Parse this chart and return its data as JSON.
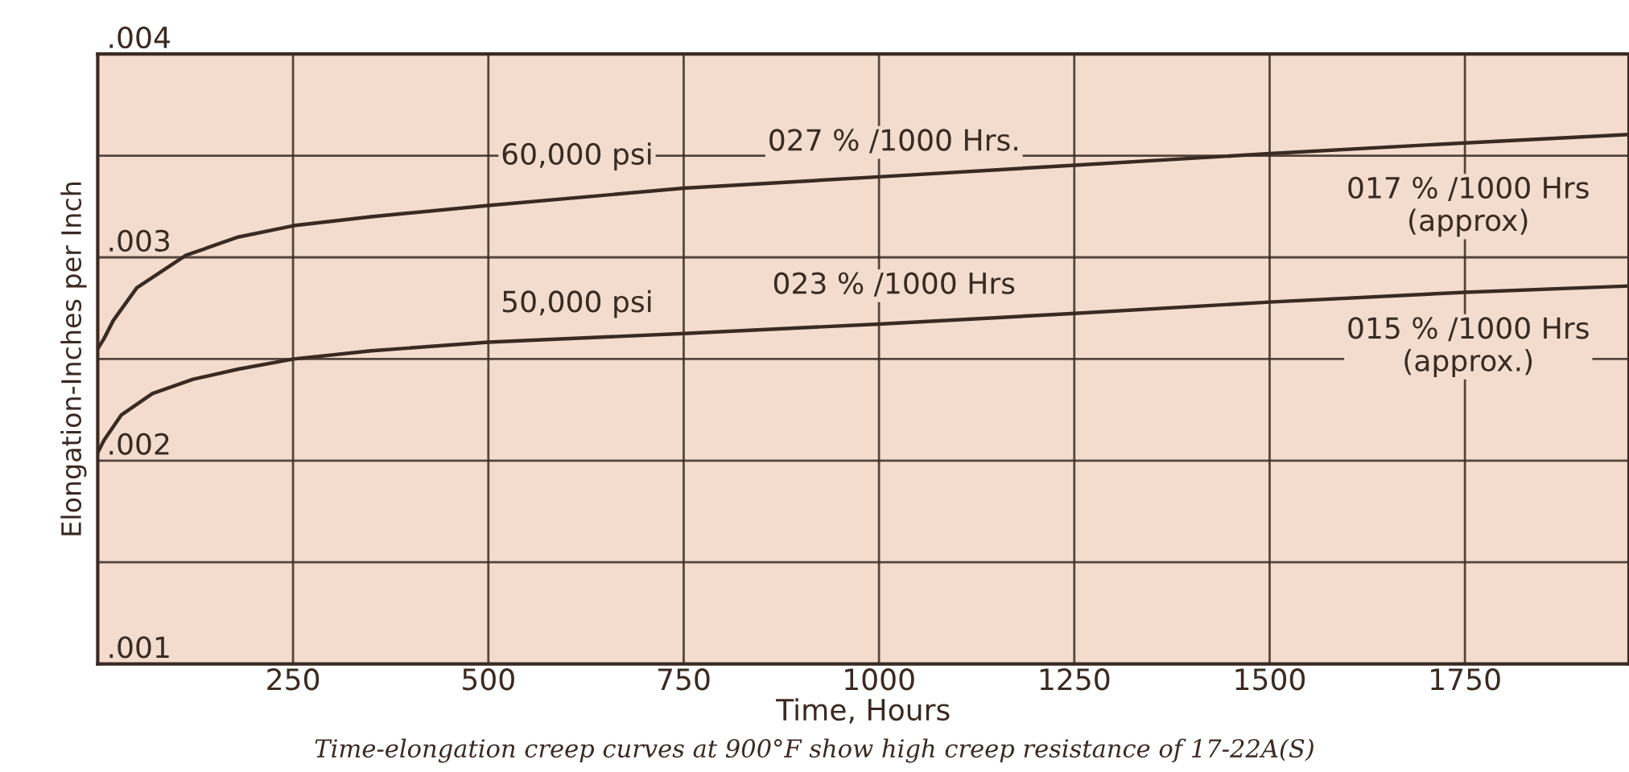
{
  "chart_data": {
    "type": "line",
    "xlabel": "Time, Hours",
    "ylabel": "Elongation-Inches per Inch",
    "xlim": [
      0,
      1960
    ],
    "ylim": [
      0.001,
      0.004
    ],
    "xticks": [
      250,
      500,
      750,
      1000,
      1250,
      1500,
      1750
    ],
    "yticks": [
      {
        "value": 0.001,
        "label": ".001"
      },
      {
        "value": 0.0015,
        "label": null
      },
      {
        "value": 0.002,
        "label": ".002"
      },
      {
        "value": 0.0025,
        "label": null
      },
      {
        "value": 0.003,
        "label": ".003"
      },
      {
        "value": 0.0035,
        "label": null
      },
      {
        "value": 0.004,
        "label": ".004"
      }
    ],
    "grid": true,
    "marker": "none",
    "line_style": "solid",
    "series": [
      {
        "color": "#3a2a22",
        "x": [
          0,
          8,
          20,
          50,
          113,
          180,
          251,
          350,
          500,
          750,
          1000,
          1250,
          1500,
          1750,
          1960
        ],
        "values": [
          0.00255,
          0.0026,
          0.00269,
          0.00285,
          0.00301,
          0.0031,
          0.003156,
          0.0032,
          0.003255,
          0.00334,
          0.003396,
          0.003453,
          0.00351,
          0.003563,
          0.003604
        ]
      },
      {
        "color": "#3a2a22",
        "x": [
          0,
          8,
          30,
          70,
          122,
          180,
          251,
          350,
          500,
          750,
          1000,
          1250,
          1500,
          1750,
          1960
        ],
        "values": [
          0.00204,
          0.0021,
          0.002224,
          0.00233,
          0.0024,
          0.00245,
          0.0025,
          0.00254,
          0.002583,
          0.002625,
          0.002672,
          0.002724,
          0.00278,
          0.002828,
          0.002859
        ]
      }
    ],
    "annotations": [
      "60,000 psi",
      "027 % /1000 Hrs.",
      "50,000 psi",
      "023 % /1000 Hrs",
      "017 % /1000 Hrs\n(approx)",
      "015 % /1000 Hrs\n(approx.)",
      "Time-elongation creep curves at 900°F show high creep resistance of 17-22A(S)"
    ]
  }
}
